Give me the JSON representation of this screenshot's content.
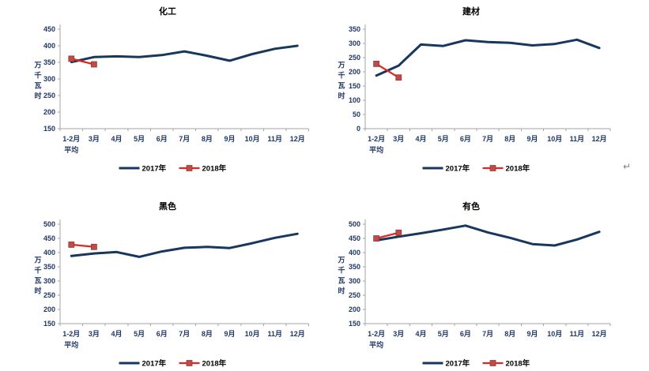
{
  "page": {
    "background": "#ffffff",
    "return_mark": "↵"
  },
  "colors": {
    "series_2017": "#17375E",
    "series_2018_line": "#DE2721",
    "series_2018_marker_fill": "#BE4B48",
    "series_2018_marker_border": "#963634",
    "axis": "#A6A6A6",
    "tick_label": "#1F3864",
    "title_text": "#000000",
    "legend_text": "#000000",
    "return_mark": "#808080"
  },
  "chart_data": [
    {
      "type": "line",
      "title": "化工",
      "ylabel": "万千瓦时",
      "xlabel": "",
      "ylim": [
        150,
        450
      ],
      "ytick_step": 50,
      "grid": false,
      "legend_position": "bottom",
      "categories": [
        "1-2月平均",
        "3月",
        "4月",
        "5月",
        "6月",
        "7月",
        "8月",
        "9月",
        "10月",
        "11月",
        "12月"
      ],
      "x_labels": [
        "1-2月",
        "3月",
        "4月",
        "5月",
        "6月",
        "7月",
        "8月",
        "9月",
        "10月",
        "11月",
        "12月"
      ],
      "x_first_sublabel": "平均",
      "series": [
        {
          "name": "2017年",
          "marker": "none",
          "values": [
            351,
            366,
            368,
            366,
            372,
            383,
            370,
            355,
            375,
            391,
            400
          ]
        },
        {
          "name": "2018年",
          "marker": "square",
          "values": [
            361,
            344
          ]
        }
      ]
    },
    {
      "type": "line",
      "title": "建材",
      "ylabel": "万千瓦时",
      "xlabel": "",
      "ylim": [
        0,
        350
      ],
      "ytick_step": 50,
      "grid": false,
      "legend_position": "bottom",
      "categories": [
        "1-2月平均",
        "3月",
        "4月",
        "5月",
        "6月",
        "7月",
        "8月",
        "9月",
        "10月",
        "11月",
        "12月"
      ],
      "x_labels": [
        "1-2月",
        "3月",
        "4月",
        "5月",
        "6月",
        "7月",
        "8月",
        "9月",
        "10月",
        "11月",
        "12月"
      ],
      "x_first_sublabel": "平均",
      "series": [
        {
          "name": "2017年",
          "marker": "none",
          "values": [
            187,
            222,
            296,
            291,
            311,
            305,
            302,
            293,
            298,
            313,
            284
          ]
        },
        {
          "name": "2018年",
          "marker": "square",
          "values": [
            228,
            180
          ]
        }
      ]
    },
    {
      "type": "line",
      "title": "黑色",
      "ylabel": "万千瓦时",
      "xlabel": "",
      "ylim": [
        150,
        500
      ],
      "ytick_step": 50,
      "grid": false,
      "legend_position": "bottom",
      "categories": [
        "1-2月平均",
        "3月",
        "4月",
        "5月",
        "6月",
        "7月",
        "8月",
        "9月",
        "10月",
        "11月",
        "12月"
      ],
      "x_labels": [
        "1-2月",
        "3月",
        "4月",
        "5月",
        "6月",
        "7月",
        "8月",
        "9月",
        "10月",
        "11月",
        "12月"
      ],
      "x_first_sublabel": "平均",
      "series": [
        {
          "name": "2017年",
          "marker": "none",
          "values": [
            388,
            397,
            402,
            385,
            404,
            417,
            420,
            416,
            433,
            452,
            466
          ]
        },
        {
          "name": "2018年",
          "marker": "square",
          "values": [
            428,
            420
          ]
        }
      ]
    },
    {
      "type": "line",
      "title": "有色",
      "ylabel": "万千瓦时",
      "xlabel": "",
      "ylim": [
        150,
        500
      ],
      "ytick_step": 50,
      "grid": false,
      "legend_position": "bottom",
      "categories": [
        "1-2月平均",
        "3月",
        "4月",
        "5月",
        "6月",
        "7月",
        "8月",
        "9月",
        "10月",
        "11月",
        "12月"
      ],
      "x_labels": [
        "1-2月",
        "3月",
        "4月",
        "5月",
        "6月",
        "7月",
        "8月",
        "9月",
        "10月",
        "11月",
        "12月"
      ],
      "x_first_sublabel": "平均",
      "series": [
        {
          "name": "2017年",
          "marker": "none",
          "values": [
            443,
            456,
            468,
            481,
            495,
            471,
            452,
            430,
            425,
            446,
            473
          ]
        },
        {
          "name": "2018年",
          "marker": "square",
          "values": [
            450,
            470
          ]
        }
      ]
    }
  ]
}
